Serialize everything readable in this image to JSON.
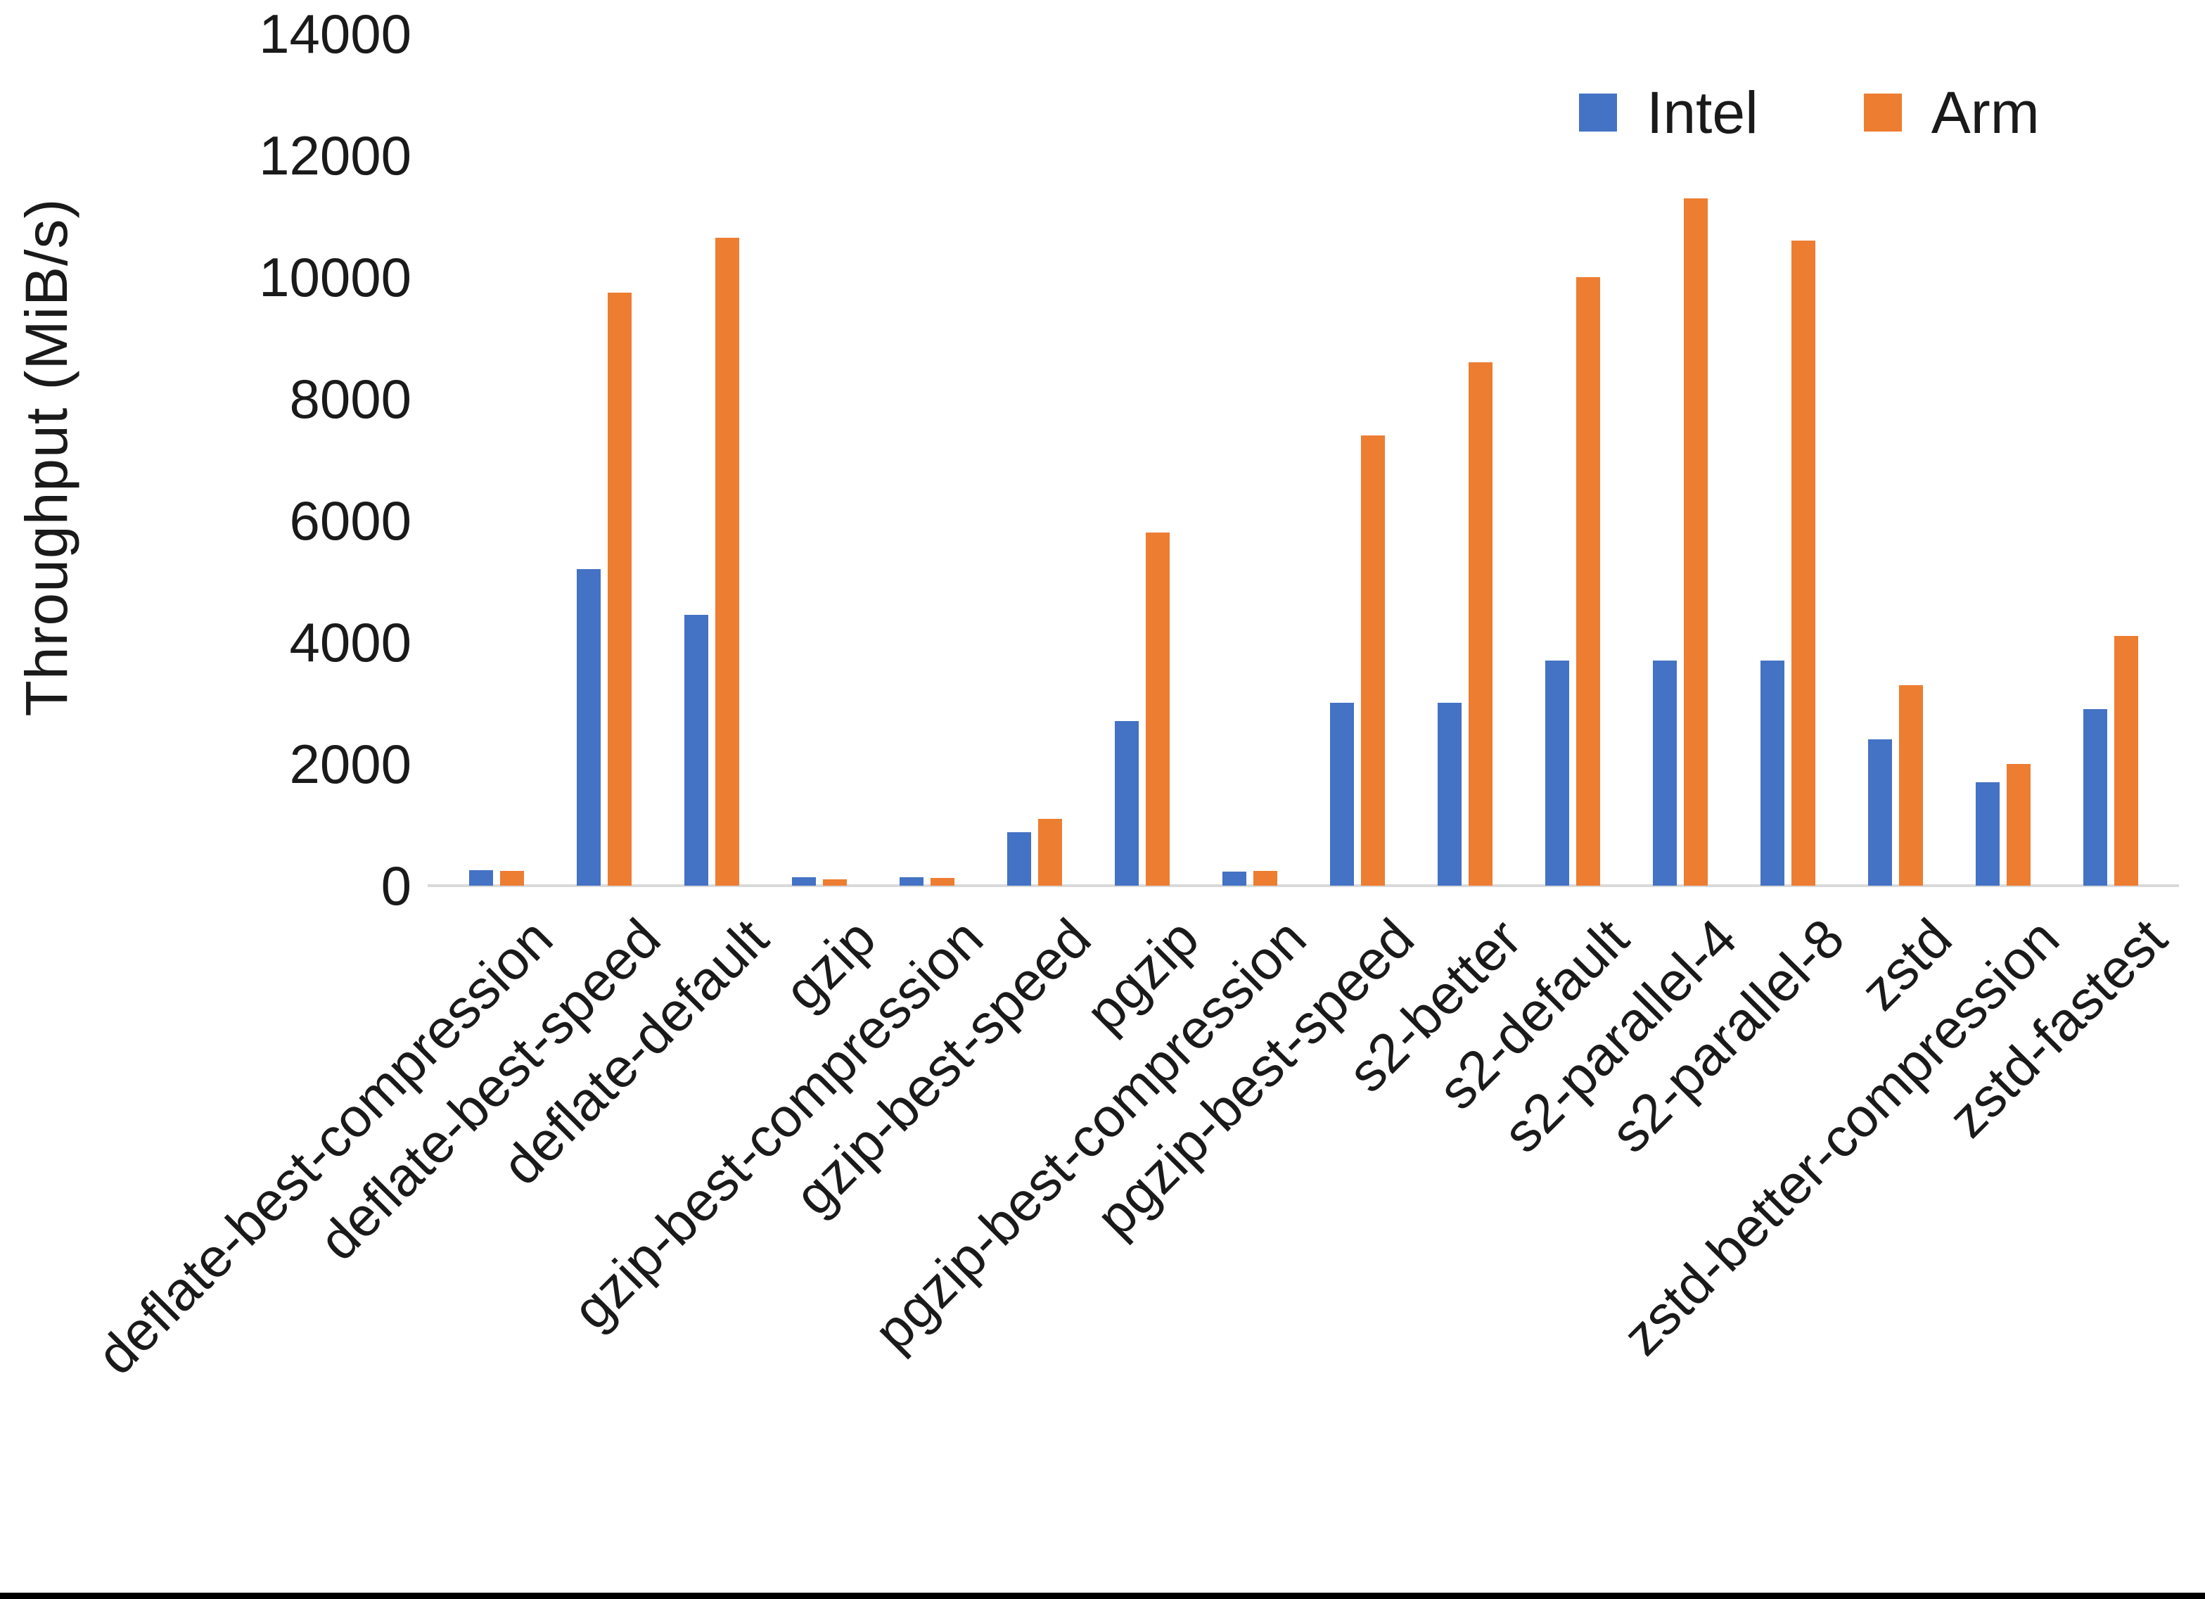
{
  "chart_data": {
    "type": "bar",
    "title": "",
    "xlabel": "",
    "ylabel": "Throughput (MiB/s)",
    "ylim": [
      0,
      14000
    ],
    "yticks": [
      0,
      2000,
      4000,
      6000,
      8000,
      10000,
      12000,
      14000
    ],
    "grid": false,
    "legend_position": "top-right",
    "categories": [
      "deflate-best-compression",
      "deflate-best-speed",
      "deflate-default",
      "gzip",
      "gzip-best-compression",
      "gzip-best-speed",
      "pgzip",
      "pgzip-best-compression",
      "pgzip-best-speed",
      "s2-better",
      "s2-default",
      "s2-parallel-4",
      "s2-parallel-8",
      "zstd",
      "zstd-better-compression",
      "zstd-fastest"
    ],
    "series": [
      {
        "name": "Intel",
        "color": "#4472C4",
        "values": [
          250,
          5200,
          4450,
          140,
          140,
          880,
          2700,
          230,
          3000,
          3000,
          3700,
          3700,
          3700,
          2400,
          1700,
          2900
        ]
      },
      {
        "name": "Arm",
        "color": "#ED7D31",
        "values": [
          240,
          9750,
          10650,
          100,
          130,
          1100,
          5800,
          240,
          7400,
          8600,
          10000,
          11300,
          10600,
          3300,
          2000,
          4100
        ]
      }
    ]
  },
  "page": {
    "background": "#FFFFFF",
    "axis_line_color": "#D9D9D9",
    "text_color": "#1A1A1A",
    "bottom_bar_color": "#000000"
  }
}
